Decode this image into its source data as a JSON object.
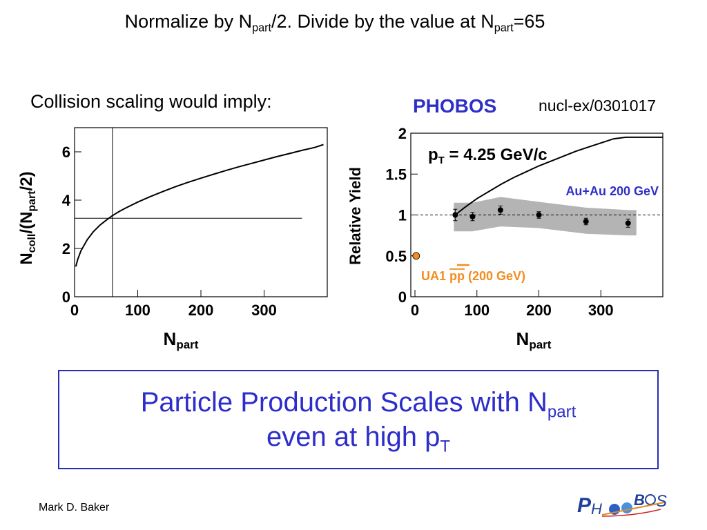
{
  "slide": {
    "title_pre": "Normalize by N",
    "title_sub1": "part",
    "title_mid": "/2. Divide by the value at N",
    "title_sub2": "part",
    "title_post": "=65",
    "scaling_text": "Collision scaling would imply:",
    "phobos_label": "PHOBOS",
    "reference": "nucl-ex/0301017",
    "conclusion_line1": "Particle Production Scales with N",
    "conclusion_sub1": "part",
    "conclusion_line2": "even at high p",
    "conclusion_sub2": "T",
    "author": "Mark D. Baker",
    "logo_text": "PHOBOS"
  },
  "colors": {
    "title_blue": "#2d2dc9",
    "band_gray": "#b4b4b4",
    "ua1_orange": "#f28c1e",
    "auau_blue": "#2f2fc8"
  },
  "chart_data": [
    {
      "type": "line",
      "xlabel_main": "N",
      "xlabel_sub": "part",
      "ylabel_parts": [
        "N",
        "coll",
        "/(N",
        "part",
        "/2)"
      ],
      "xlim": [
        0,
        400
      ],
      "ylim": [
        0,
        7
      ],
      "xticks": [
        "0",
        "100",
        "200",
        "300"
      ],
      "yticks": [
        "0",
        "2",
        "4",
        "6"
      ],
      "curve": {
        "x": [
          2,
          5,
          10,
          20,
          30,
          40,
          50,
          60,
          70,
          80,
          100,
          120,
          140,
          160,
          180,
          200,
          220,
          240,
          260,
          280,
          300,
          320,
          340,
          360,
          380,
          394
        ],
        "y": [
          1.25,
          1.55,
          1.9,
          2.36,
          2.7,
          2.96,
          3.17,
          3.36,
          3.52,
          3.66,
          3.92,
          4.15,
          4.36,
          4.56,
          4.74,
          4.91,
          5.07,
          5.23,
          5.38,
          5.52,
          5.66,
          5.8,
          5.93,
          6.06,
          6.18,
          6.3
        ]
      },
      "reference_lines": {
        "vertical_x": 60,
        "horizontal_y": 3.25,
        "horizontal_x_end": 360
      }
    },
    {
      "type": "scatter",
      "ylabel": "Relative Yield",
      "xlabel_main": "N",
      "xlabel_sub": "part",
      "annotation_main": "p",
      "annotation_sub": "T",
      "annotation_rest": " = 4.25 GeV/c",
      "xlim": [
        0,
        400
      ],
      "ylim": [
        0,
        2
      ],
      "xticks": [
        "0",
        "100",
        "200",
        "300"
      ],
      "yticks": [
        "0",
        "0.5",
        "1",
        "1.5",
        "2"
      ],
      "series": [
        {
          "name": "Au+Au 200 GeV",
          "x": [
            65,
            93,
            138,
            200,
            276,
            344
          ],
          "y": [
            1.0,
            0.98,
            1.06,
            1.0,
            0.92,
            0.9
          ],
          "err": [
            0.07,
            0.05,
            0.05,
            0.04,
            0.04,
            0.05
          ],
          "band_upper": [
            1.15,
            1.15,
            1.22,
            1.16,
            1.09,
            1.06
          ],
          "band_lower": [
            0.8,
            0.8,
            0.86,
            0.84,
            0.77,
            0.75
          ]
        },
        {
          "name_pre": "UA1 ",
          "name_bar": "pp",
          "name_post": "  (200 GeV)",
          "x": [
            2
          ],
          "y": [
            0.5
          ]
        }
      ],
      "collision_curve": {
        "x": [
          65,
          80,
          100,
          120,
          140,
          160,
          180,
          200,
          220,
          240,
          260,
          280,
          300,
          320,
          340,
          360,
          380,
          400
        ],
        "y": [
          1.0,
          1.09,
          1.2,
          1.29,
          1.38,
          1.46,
          1.53,
          1.6,
          1.66,
          1.72,
          1.78,
          1.83,
          1.88,
          1.93,
          1.97,
          2.02,
          2.06,
          2.1
        ]
      },
      "reference_line_y": 1.0
    }
  ]
}
